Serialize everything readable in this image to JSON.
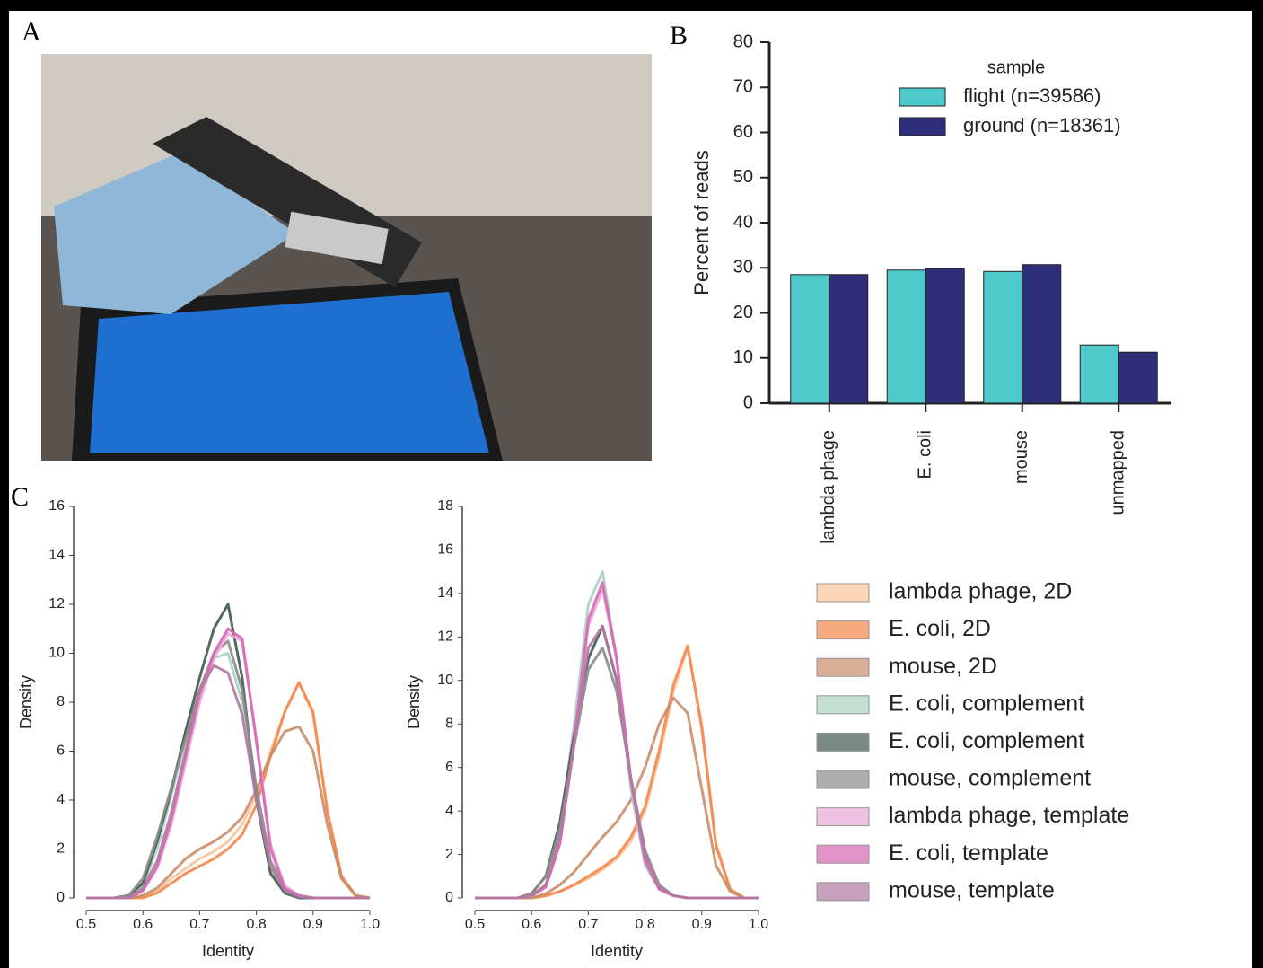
{
  "panel_labels": [
    "A",
    "B",
    "C"
  ],
  "chart_data": [
    {
      "type": "bar",
      "ylabel": "Percent of reads",
      "legend_title": "sample",
      "legend": "upper right",
      "categories": [
        "lambda phage",
        "E. coli",
        "mouse",
        "unmapped"
      ],
      "series": [
        {
          "name": "flight (n=39586)",
          "color": "#4ec9c9",
          "values": [
            28.5,
            29.5,
            29.2,
            12.9
          ]
        },
        {
          "name": "ground (n=18361)",
          "color": "#2e2e7a",
          "values": [
            28.5,
            29.8,
            30.7,
            11.3
          ]
        }
      ],
      "ylim": [
        0,
        80
      ],
      "yticks": [
        0,
        10,
        20,
        30,
        40,
        50,
        60,
        70,
        80
      ]
    },
    {
      "type": "line",
      "xlabel": "Identity",
      "ylabel": "Density",
      "legend": "right",
      "x": [
        0.5,
        0.525,
        0.55,
        0.575,
        0.6,
        0.625,
        0.65,
        0.675,
        0.7,
        0.725,
        0.75,
        0.775,
        0.8,
        0.825,
        0.85,
        0.875,
        0.9,
        0.925,
        0.95,
        0.975,
        1.0
      ],
      "xlim": [
        0.5,
        1.0
      ],
      "xticks": [
        0.5,
        0.6,
        0.7,
        0.8,
        0.9,
        {
          "value": 1.0,
          "label": "1.0"
        }
      ],
      "ylim": [
        0,
        16
      ],
      "yticks": [
        0,
        2,
        4,
        6,
        8,
        10,
        12,
        14,
        16
      ],
      "series": [
        {
          "name": "lambda phage, 2D",
          "color": "#f9c49a",
          "values": [
            0,
            0,
            0,
            0,
            0.05,
            0.3,
            0.8,
            1.2,
            1.6,
            1.9,
            2.3,
            3,
            4.2,
            6,
            7.6,
            8.8,
            7.5,
            3.5,
            0.8,
            0.1,
            0
          ]
        },
        {
          "name": "E. coli, 2D",
          "color": "#f4874b",
          "values": [
            0,
            0,
            0,
            0,
            0,
            0.2,
            0.6,
            1,
            1.3,
            1.6,
            2,
            2.6,
            3.8,
            5.8,
            7.6,
            8.8,
            7.6,
            3.6,
            0.9,
            0.1,
            0
          ]
        },
        {
          "name": "mouse, 2D",
          "color": "#c98d6a",
          "values": [
            0,
            0,
            0,
            0,
            0.1,
            0.4,
            1,
            1.6,
            2,
            2.3,
            2.7,
            3.3,
            4.4,
            5.8,
            6.8,
            7,
            6,
            3,
            0.8,
            0.1,
            0
          ]
        },
        {
          "name": "E. coli, complement",
          "color": "#a9d3c2",
          "values": [
            0,
            0,
            0,
            0.05,
            0.5,
            2,
            4.2,
            6.5,
            8.5,
            9.8,
            10,
            8,
            4,
            1.2,
            0.3,
            0.05,
            0,
            0,
            0,
            0,
            0
          ]
        },
        {
          "name": "E. coli, complement",
          "color": "#3f5a4f",
          "values": [
            0,
            0,
            0,
            0.1,
            0.6,
            2.3,
            4.4,
            6.8,
            9,
            11,
            12,
            9,
            4,
            1,
            0.2,
            0,
            0,
            0,
            0,
            0,
            0
          ]
        },
        {
          "name": "mouse, complement",
          "color": "#8c8c8c",
          "values": [
            0,
            0,
            0,
            0.1,
            0.8,
            2.5,
            4.5,
            6.5,
            8.5,
            10,
            10.5,
            8.5,
            4.5,
            1.5,
            0.4,
            0.1,
            0,
            0,
            0,
            0,
            0
          ]
        },
        {
          "name": "lambda phage, template",
          "color": "#e9a8d6",
          "values": [
            0,
            0,
            0,
            0,
            0.3,
            1.2,
            3,
            5.5,
            8,
            9.8,
            10.8,
            10.5,
            6.5,
            2.2,
            0.5,
            0.1,
            0,
            0,
            0,
            0,
            0
          ]
        },
        {
          "name": "E. coli, template",
          "color": "#d966b5",
          "values": [
            0,
            0,
            0,
            0,
            0.3,
            1.3,
            3.2,
            5.8,
            8.3,
            10,
            11,
            10.6,
            6.4,
            2,
            0.4,
            0.1,
            0,
            0,
            0,
            0,
            0
          ]
        },
        {
          "name": "mouse, template",
          "color": "#b07aa1",
          "values": [
            0,
            0,
            0,
            0,
            0.4,
            1.5,
            3.5,
            6,
            8.5,
            9.5,
            9.2,
            7.5,
            4,
            1.3,
            0.3,
            0.05,
            0,
            0,
            0,
            0,
            0
          ]
        }
      ]
    },
    {
      "type": "line",
      "xlabel": "Identity",
      "ylabel": "Density",
      "x": [
        0.5,
        0.525,
        0.55,
        0.575,
        0.6,
        0.625,
        0.65,
        0.675,
        0.7,
        0.725,
        0.75,
        0.775,
        0.8,
        0.825,
        0.85,
        0.875,
        0.9,
        0.925,
        0.95,
        0.975,
        1.0
      ],
      "xlim": [
        0.5,
        1.0
      ],
      "xticks": [
        0.5,
        0.6,
        0.7,
        0.8,
        0.9,
        {
          "value": 1.0,
          "label": "1.0"
        }
      ],
      "ylim": [
        0,
        18
      ],
      "yticks": [
        0,
        2,
        4,
        6,
        8,
        10,
        12,
        14,
        16,
        18
      ],
      "series": [
        {
          "color": "#f9c49a",
          "values": [
            0,
            0,
            0,
            0,
            0,
            0.1,
            0.3,
            0.6,
            0.9,
            1.3,
            1.8,
            2.6,
            4,
            6.5,
            9.5,
            11.5,
            8,
            2.5,
            0.4,
            0,
            0
          ]
        },
        {
          "color": "#f4874b",
          "values": [
            0,
            0,
            0,
            0,
            0,
            0.1,
            0.3,
            0.6,
            1,
            1.4,
            1.9,
            2.8,
            4.2,
            6.8,
            9.8,
            11.6,
            7.8,
            2.4,
            0.4,
            0,
            0
          ]
        },
        {
          "color": "#c98d6a",
          "values": [
            0,
            0,
            0,
            0,
            0,
            0.2,
            0.6,
            1.2,
            2,
            2.8,
            3.5,
            4.5,
            6,
            8,
            9.2,
            8.5,
            5,
            1.5,
            0.3,
            0,
            0
          ]
        },
        {
          "color": "#a9d3c2",
          "values": [
            0,
            0,
            0,
            0,
            0.1,
            0.6,
            3,
            8,
            13.5,
            15,
            11,
            5,
            1.5,
            0.4,
            0.1,
            0,
            0,
            0,
            0,
            0,
            0
          ]
        },
        {
          "color": "#3f5a4f",
          "values": [
            0,
            0,
            0,
            0,
            0.2,
            1,
            3.5,
            7.5,
            11,
            12.5,
            10,
            5.5,
            2,
            0.5,
            0.1,
            0,
            0,
            0,
            0,
            0,
            0
          ]
        },
        {
          "color": "#8c8c8c",
          "values": [
            0,
            0,
            0,
            0,
            0.2,
            1,
            3.2,
            7,
            10.5,
            11.5,
            9.5,
            5.5,
            2.2,
            0.6,
            0.1,
            0,
            0,
            0,
            0,
            0,
            0
          ]
        },
        {
          "color": "#e9a8d6",
          "values": [
            0,
            0,
            0,
            0,
            0.1,
            0.5,
            2.5,
            7,
            12.5,
            14.2,
            11,
            5.5,
            1.8,
            0.4,
            0.1,
            0,
            0,
            0,
            0,
            0,
            0
          ]
        },
        {
          "color": "#d966b5",
          "values": [
            0,
            0,
            0,
            0,
            0.1,
            0.5,
            2.5,
            7.2,
            12.8,
            14.5,
            11,
            5.4,
            1.7,
            0.4,
            0.1,
            0,
            0,
            0,
            0,
            0,
            0
          ]
        },
        {
          "color": "#b07aa1",
          "values": [
            0,
            0,
            0,
            0,
            0.1,
            0.6,
            2.8,
            7,
            11.5,
            12.5,
            10,
            5.5,
            2,
            0.5,
            0.1,
            0,
            0,
            0,
            0,
            0,
            0
          ]
        }
      ]
    }
  ]
}
